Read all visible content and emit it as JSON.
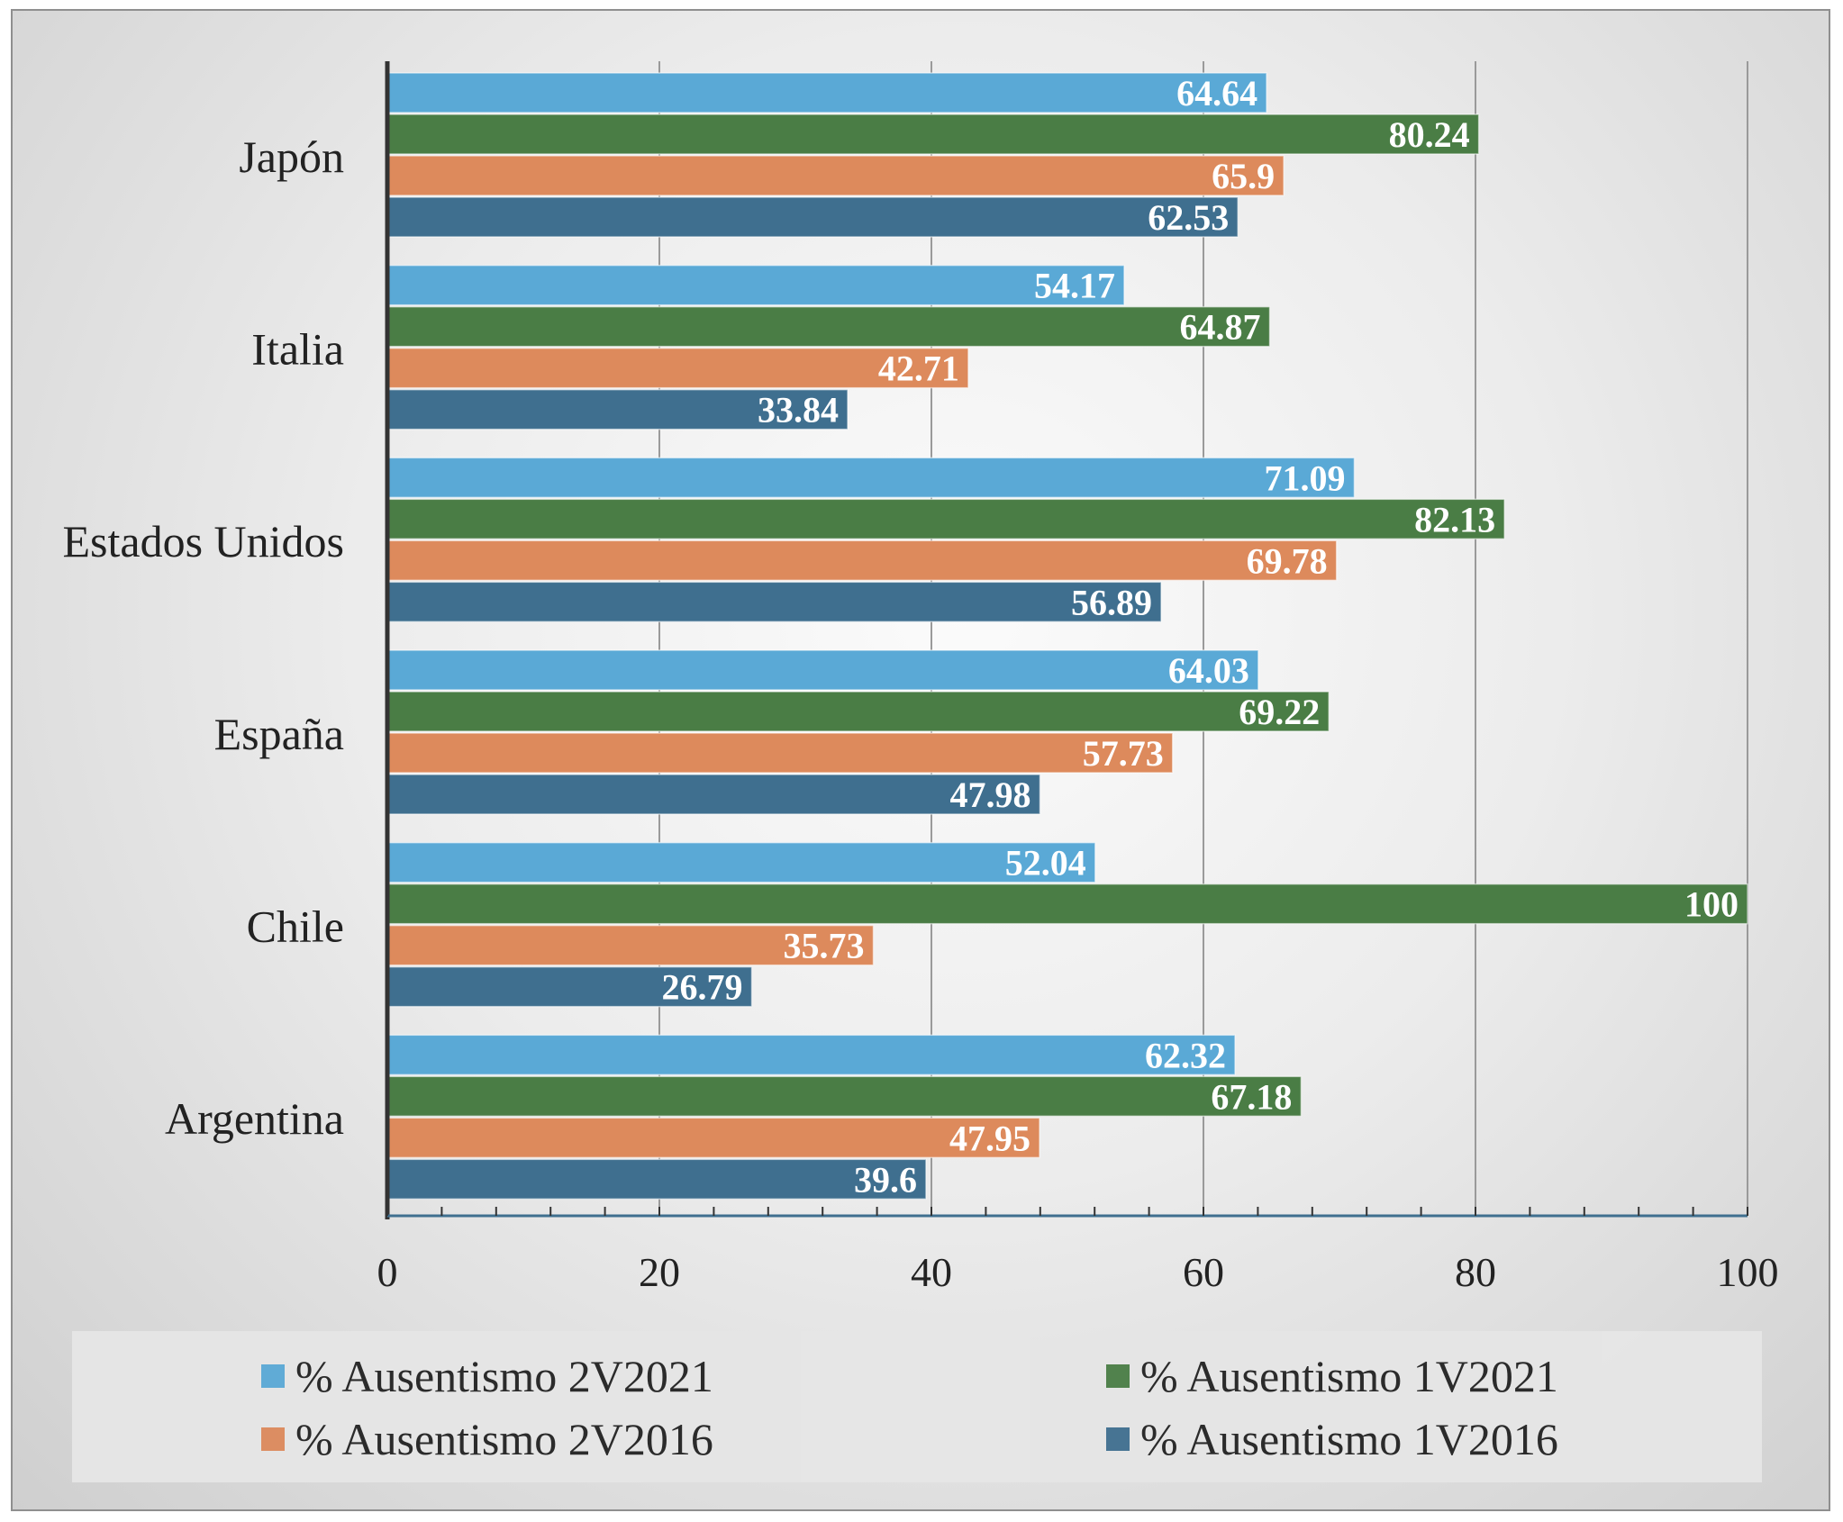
{
  "chart_data": {
    "type": "bar",
    "orientation": "horizontal",
    "categories": [
      "Japón",
      "Italia",
      "Estados Unidos",
      "España",
      "Chile",
      "Argentina"
    ],
    "series": [
      {
        "name": "% Ausentismo 2V2021",
        "color": "#5aa9d6",
        "values": [
          64.64,
          54.17,
          71.09,
          64.03,
          52.04,
          62.32
        ]
      },
      {
        "name": "% Ausentismo 1V2021",
        "color": "#4a7d45",
        "values": [
          80.24,
          64.87,
          82.13,
          69.22,
          100,
          67.18
        ]
      },
      {
        "name": "% Ausentismo 2V2016",
        "color": "#dd8a5c",
        "values": [
          65.9,
          42.71,
          69.78,
          57.73,
          35.73,
          47.95
        ]
      },
      {
        "name": "% Ausentismo 1V2016",
        "color": "#3f6f8f",
        "values": [
          62.53,
          33.84,
          56.89,
          47.98,
          26.79,
          39.6
        ]
      }
    ],
    "data_labels": [
      [
        "64.64",
        "54.17",
        "71.09",
        "64.03",
        "52.04",
        "62.32"
      ],
      [
        "80.24",
        "64.87",
        "82.13",
        "69.22",
        "100",
        "67.18"
      ],
      [
        "65.9",
        "42.71",
        "69.78",
        "57.73",
        "35.73",
        "47.95"
      ],
      [
        "62.53",
        "33.84",
        "56.89",
        "47.98",
        "26.79",
        "39.6"
      ]
    ],
    "xlim": [
      0,
      100
    ],
    "x_ticks": [
      "0",
      "20",
      "40",
      "60",
      "80",
      "100"
    ],
    "title": "",
    "xlabel": "",
    "ylabel": "",
    "grid": true,
    "legend_position": "bottom"
  },
  "legend": {
    "items": [
      {
        "label": "% Ausentismo 2V2021",
        "color": "#5aa9d6"
      },
      {
        "label": "% Ausentismo 1V2021",
        "color": "#4a7d45"
      },
      {
        "label": "% Ausentismo 2V2016",
        "color": "#dd8a5c"
      },
      {
        "label": "% Ausentismo 1V2016",
        "color": "#3f6f8f"
      }
    ]
  }
}
